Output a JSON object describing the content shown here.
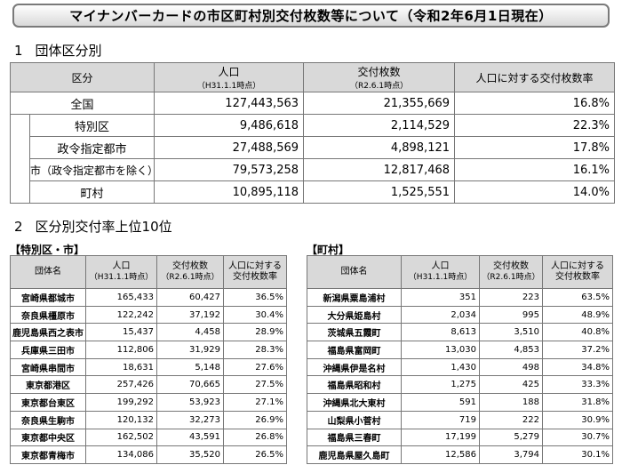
{
  "title": "マイナンバーカードの市区町村別交付枚数等について（令和2年6月1日現在）",
  "section1": {
    "number": "1",
    "title": "団体区分別",
    "headers": {
      "category": "区分",
      "population": "人口",
      "population_sub": "（H31.1.1時点）",
      "issued": "交付枚数",
      "issued_sub": "（R2.6.1時点）",
      "rate": "人口に対する交付枚数率"
    },
    "rows": [
      {
        "label": "全国",
        "population": "127,443,563",
        "issued": "21,355,669",
        "rate": "16.8%"
      },
      {
        "label": "特別区",
        "population": "9,486,618",
        "issued": "2,114,529",
        "rate": "22.3%"
      },
      {
        "label": "政令指定都市",
        "population": "27,488,569",
        "issued": "4,898,121",
        "rate": "17.8%"
      },
      {
        "label": "市（政令指定都市を除く）",
        "population": "79,573,258",
        "issued": "12,817,468",
        "rate": "16.1%"
      },
      {
        "label": "町村",
        "population": "10,895,118",
        "issued": "1,525,551",
        "rate": "14.0%"
      }
    ]
  },
  "section2": {
    "number": "2",
    "title": "区分別交付率上位10位",
    "headers": {
      "name": "団体名",
      "population": "人口",
      "population_sub": "（H31.1.1時点）",
      "issued": "交付枚数",
      "issued_sub": "（R2.6.1時点）",
      "rate_line1": "人口に対する",
      "rate_line2": "交付枚数率"
    },
    "cities": {
      "label": "【特別区・市】",
      "rows": [
        {
          "name": "宮崎県都城市",
          "population": "165,433",
          "issued": "60,427",
          "rate": "36.5%"
        },
        {
          "name": "奈良県橿原市",
          "population": "122,242",
          "issued": "37,192",
          "rate": "30.4%"
        },
        {
          "name": "鹿児島県西之表市",
          "population": "15,437",
          "issued": "4,458",
          "rate": "28.9%"
        },
        {
          "name": "兵庫県三田市",
          "population": "112,806",
          "issued": "31,929",
          "rate": "28.3%"
        },
        {
          "name": "宮崎県串間市",
          "population": "18,631",
          "issued": "5,148",
          "rate": "27.6%"
        },
        {
          "name": "東京都港区",
          "population": "257,426",
          "issued": "70,665",
          "rate": "27.5%"
        },
        {
          "name": "東京都台東区",
          "population": "199,292",
          "issued": "53,923",
          "rate": "27.1%"
        },
        {
          "name": "奈良県生駒市",
          "population": "120,132",
          "issued": "32,273",
          "rate": "26.9%"
        },
        {
          "name": "東京都中央区",
          "population": "162,502",
          "issued": "43,591",
          "rate": "26.8%"
        },
        {
          "name": "東京都青梅市",
          "population": "134,086",
          "issued": "35,520",
          "rate": "26.5%"
        }
      ]
    },
    "towns": {
      "label": "【町村】",
      "rows": [
        {
          "name": "新潟県粟島浦村",
          "population": "351",
          "issued": "223",
          "rate": "63.5%"
        },
        {
          "name": "大分県姫島村",
          "population": "2,034",
          "issued": "995",
          "rate": "48.9%"
        },
        {
          "name": "茨城県五霞町",
          "population": "8,613",
          "issued": "3,510",
          "rate": "40.8%"
        },
        {
          "name": "福島県富岡町",
          "population": "13,030",
          "issued": "4,853",
          "rate": "37.2%"
        },
        {
          "name": "沖縄県伊是名村",
          "population": "1,430",
          "issued": "498",
          "rate": "34.8%"
        },
        {
          "name": "福島県昭和村",
          "population": "1,275",
          "issued": "425",
          "rate": "33.3%"
        },
        {
          "name": "沖縄県北大東村",
          "population": "591",
          "issued": "188",
          "rate": "31.8%"
        },
        {
          "name": "山梨県小菅村",
          "population": "719",
          "issued": "222",
          "rate": "30.9%"
        },
        {
          "name": "福島県三春町",
          "population": "17,199",
          "issued": "5,279",
          "rate": "30.7%"
        },
        {
          "name": "鹿児島県屋久島町",
          "population": "12,586",
          "issued": "3,794",
          "rate": "30.1%"
        }
      ]
    }
  }
}
